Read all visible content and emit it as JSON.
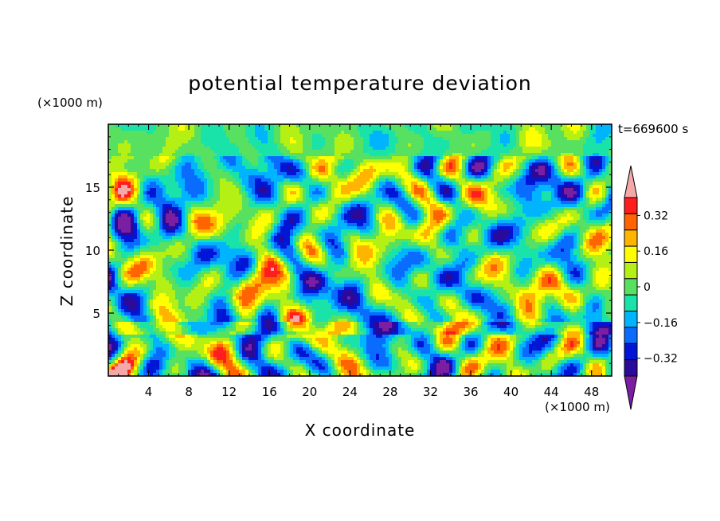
{
  "chart_data": {
    "type": "heatmap",
    "title": "potential temperature deviation",
    "time_label": "t=669600 s",
    "xlabel": "X coordinate",
    "ylabel": "Z coordinate",
    "x_unit": "(×1000 m)",
    "y_unit": "(×1000 m)",
    "xlim": [
      0,
      50
    ],
    "ylim": [
      0,
      20
    ],
    "x_ticks": [
      4,
      8,
      12,
      16,
      20,
      24,
      28,
      32,
      36,
      40,
      44,
      48
    ],
    "y_ticks": [
      5,
      10,
      15
    ],
    "colorbar": {
      "levels": [
        -0.48,
        -0.4,
        -0.32,
        -0.24,
        -0.16,
        -0.08,
        0,
        0.08,
        0.16,
        0.24,
        0.32,
        0.4,
        0.48
      ],
      "tick_values": [
        0.32,
        0.16,
        0,
        -0.16,
        -0.32
      ],
      "tick_labels": [
        "0.32",
        "0.16",
        "0",
        "−0.16",
        "−0.32"
      ],
      "colors": [
        "#7b1fa2",
        "#2a0a9a",
        "#0016d6",
        "#0a6cff",
        "#00b4ff",
        "#19e3a8",
        "#58e060",
        "#b4f014",
        "#ffff00",
        "#ffb400",
        "#ff6400",
        "#ff1e1e",
        "#f5a8a8"
      ],
      "extend": "both"
    }
  }
}
